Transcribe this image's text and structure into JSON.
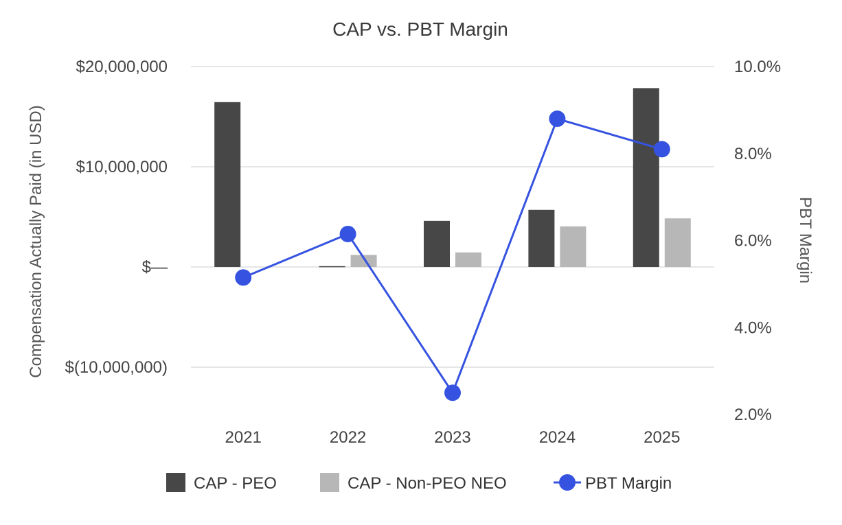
{
  "chart_data": {
    "type": "bar",
    "title": "CAP vs. PBT Margin",
    "categories": [
      "2021",
      "2022",
      "2023",
      "2024",
      "2025"
    ],
    "y_left": {
      "label": "Compensation Actually Paid (in USD)",
      "ticks": [
        {
          "value": 20000000,
          "label": "$20,000,000"
        },
        {
          "value": 10000000,
          "label": "$10,000,000"
        },
        {
          "value": 0,
          "label": "$—"
        },
        {
          "value": -10000000,
          "label": "$(10,000,000)"
        }
      ],
      "range": [
        -15000000,
        20000000
      ]
    },
    "y_right": {
      "label": "PBT Margin",
      "ticks": [
        {
          "value": 10.0,
          "label": "10.0%"
        },
        {
          "value": 8.0,
          "label": "8.0%"
        },
        {
          "value": 6.0,
          "label": "6.0%"
        },
        {
          "value": 4.0,
          "label": "4.0%"
        },
        {
          "value": 2.0,
          "label": "2.0%"
        }
      ],
      "range": [
        2.0,
        10.0
      ]
    },
    "series": [
      {
        "name": "CAP - PEO",
        "type": "bar",
        "axis": "left",
        "color": "#474747",
        "values": [
          16450000,
          80000,
          4600000,
          5700000,
          17850000
        ]
      },
      {
        "name": "CAP - Non-PEO NEO",
        "type": "bar",
        "axis": "left",
        "color": "#b7b7b7",
        "values": [
          0,
          1200000,
          1450000,
          4050000,
          4850000
        ]
      },
      {
        "name": "PBT Margin",
        "type": "line",
        "axis": "right",
        "color": "#3553e0",
        "values": [
          5.15,
          6.15,
          2.5,
          8.8,
          8.1
        ]
      }
    ],
    "grid": true,
    "legend_position": "bottom"
  }
}
